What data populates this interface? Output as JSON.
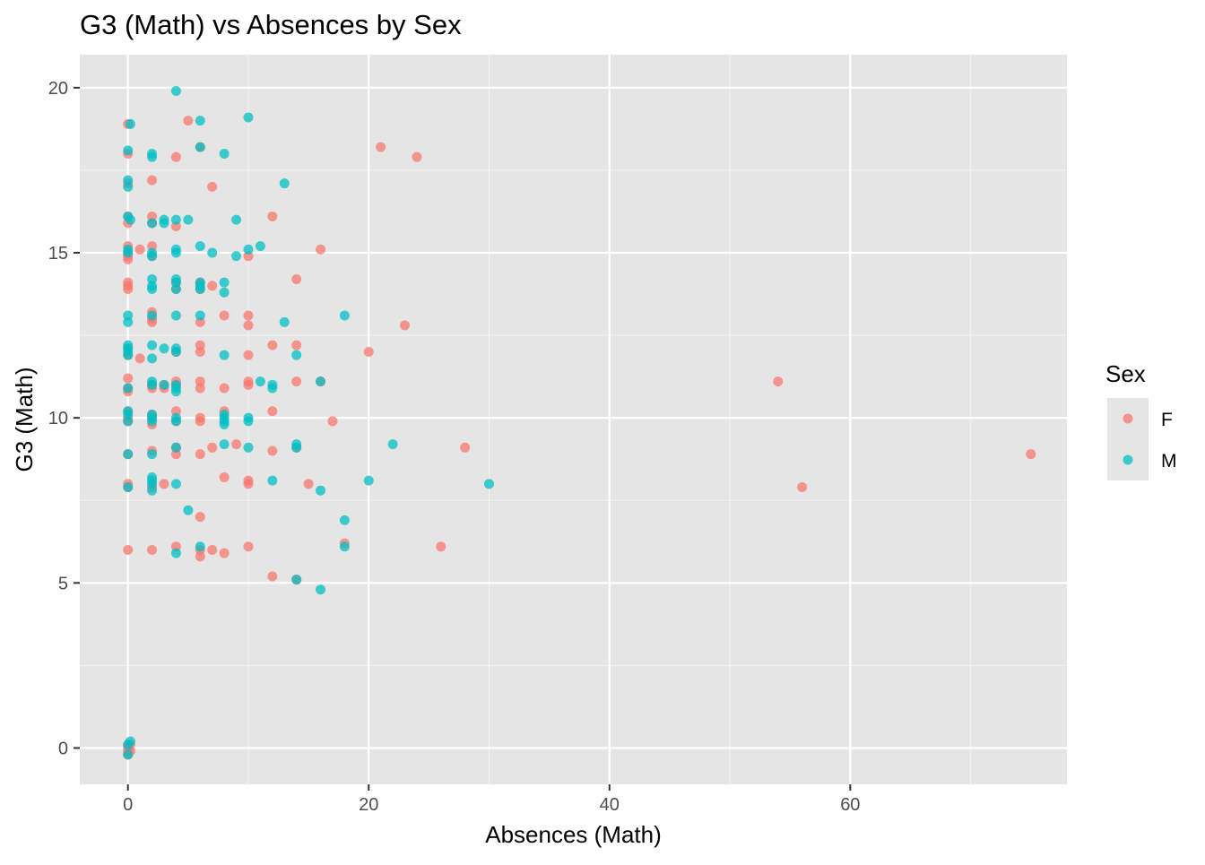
{
  "chart_data": {
    "type": "scatter",
    "title": "G3 (Math) vs Absences by Sex",
    "xlabel": "Absences (Math)",
    "ylabel": "G3 (Math)",
    "xlim": [
      -4,
      78
    ],
    "ylim": [
      -1.1,
      21
    ],
    "x_ticks": [
      0,
      20,
      40,
      60
    ],
    "y_ticks": [
      0,
      5,
      10,
      15,
      20
    ],
    "grid": true,
    "legend": {
      "title": "Sex",
      "position": "right"
    },
    "series": [
      {
        "name": "F",
        "color": "#F8766D",
        "points": [
          [
            0,
            18.9
          ],
          [
            0,
            18.0
          ],
          [
            0,
            17.1
          ],
          [
            0,
            16.1
          ],
          [
            0,
            15.9
          ],
          [
            0,
            15.2
          ],
          [
            0,
            15.0
          ],
          [
            0,
            14.9
          ],
          [
            0,
            14.8
          ],
          [
            0,
            14.1
          ],
          [
            0,
            14.0
          ],
          [
            0,
            13.9
          ],
          [
            0,
            12.1
          ],
          [
            0,
            11.9
          ],
          [
            0,
            11.2
          ],
          [
            0,
            10.9
          ],
          [
            0,
            10.8
          ],
          [
            0,
            10.2
          ],
          [
            0,
            10.0
          ],
          [
            0,
            9.9
          ],
          [
            0,
            8.9
          ],
          [
            0,
            8.0
          ],
          [
            0,
            7.9
          ],
          [
            0,
            6.0
          ],
          [
            0,
            0.1
          ],
          [
            0,
            0.0
          ],
          [
            0,
            -0.1
          ],
          [
            0,
            -0.2
          ],
          [
            0.2,
            0.1
          ],
          [
            0.2,
            -0.1
          ],
          [
            1,
            11.8
          ],
          [
            1,
            15.1
          ],
          [
            2,
            17.2
          ],
          [
            2,
            16.1
          ],
          [
            2,
            15.9
          ],
          [
            2,
            15.2
          ],
          [
            2,
            14.9
          ],
          [
            2,
            13.2
          ],
          [
            2,
            13.0
          ],
          [
            2,
            12.9
          ],
          [
            2,
            11.0
          ],
          [
            2,
            10.9
          ],
          [
            2,
            10.1
          ],
          [
            2,
            10.0
          ],
          [
            2,
            9.8
          ],
          [
            2,
            9.0
          ],
          [
            2,
            7.9
          ],
          [
            2,
            6.0
          ],
          [
            3,
            11.0
          ],
          [
            3,
            10.9
          ],
          [
            3,
            8.0
          ],
          [
            4,
            17.9
          ],
          [
            4,
            15.8
          ],
          [
            4,
            14.1
          ],
          [
            4,
            13.9
          ],
          [
            4,
            12.0
          ],
          [
            4,
            11.1
          ],
          [
            4,
            11.0
          ],
          [
            4,
            10.2
          ],
          [
            4,
            9.9
          ],
          [
            4,
            9.1
          ],
          [
            4,
            8.9
          ],
          [
            4,
            6.1
          ],
          [
            5,
            19.0
          ],
          [
            6,
            18.2
          ],
          [
            6,
            14.1
          ],
          [
            6,
            13.9
          ],
          [
            6,
            12.9
          ],
          [
            6,
            12.2
          ],
          [
            6,
            12.0
          ],
          [
            6,
            11.1
          ],
          [
            6,
            10.9
          ],
          [
            6,
            10.0
          ],
          [
            6,
            9.9
          ],
          [
            6,
            8.9
          ],
          [
            6,
            7.0
          ],
          [
            6,
            6.0
          ],
          [
            6,
            5.8
          ],
          [
            7,
            17.0
          ],
          [
            7,
            14.0
          ],
          [
            7,
            9.1
          ],
          [
            7,
            6.0
          ],
          [
            8,
            13.1
          ],
          [
            8,
            10.9
          ],
          [
            8,
            10.2
          ],
          [
            8,
            8.2
          ],
          [
            8,
            5.9
          ],
          [
            9,
            9.2
          ],
          [
            10,
            13.1
          ],
          [
            10,
            11.1
          ],
          [
            10,
            11.0
          ],
          [
            10,
            8.1
          ],
          [
            10,
            8.0
          ],
          [
            10,
            6.1
          ],
          [
            10,
            14.9
          ],
          [
            10,
            12.8
          ],
          [
            10,
            11.9
          ],
          [
            12,
            16.1
          ],
          [
            12,
            12.2
          ],
          [
            12,
            10.2
          ],
          [
            12,
            9.0
          ],
          [
            12,
            5.2
          ],
          [
            14,
            14.2
          ],
          [
            14,
            12.2
          ],
          [
            14,
            11.1
          ],
          [
            14,
            9.1
          ],
          [
            14,
            5.1
          ],
          [
            15,
            8.0
          ],
          [
            16,
            15.1
          ],
          [
            16,
            11.1
          ],
          [
            17,
            9.9
          ],
          [
            18,
            6.2
          ],
          [
            20,
            12.0
          ],
          [
            21,
            18.2
          ],
          [
            23,
            12.8
          ],
          [
            24,
            17.9
          ],
          [
            26,
            6.1
          ],
          [
            28,
            9.1
          ],
          [
            54,
            11.1
          ],
          [
            56,
            7.9
          ],
          [
            75,
            8.9
          ]
        ]
      },
      {
        "name": "M",
        "color": "#00BFC4",
        "points": [
          [
            0,
            18.1
          ],
          [
            0,
            17.2
          ],
          [
            0,
            17.0
          ],
          [
            0,
            16.1
          ],
          [
            0,
            15.1
          ],
          [
            0,
            15.0
          ],
          [
            0,
            13.1
          ],
          [
            0,
            12.9
          ],
          [
            0,
            12.2
          ],
          [
            0,
            12.1
          ],
          [
            0,
            12.0
          ],
          [
            0,
            11.9
          ],
          [
            0,
            10.9
          ],
          [
            0,
            10.2
          ],
          [
            0,
            10.1
          ],
          [
            0,
            9.9
          ],
          [
            0,
            8.9
          ],
          [
            0,
            7.9
          ],
          [
            0,
            0.1
          ],
          [
            0,
            -0.2
          ],
          [
            0.2,
            18.9
          ],
          [
            0.2,
            16.0
          ],
          [
            0.2,
            0.2
          ],
          [
            2,
            18.0
          ],
          [
            2,
            17.9
          ],
          [
            2,
            15.9
          ],
          [
            2,
            15.0
          ],
          [
            2,
            14.9
          ],
          [
            2,
            14.2
          ],
          [
            2,
            14.0
          ],
          [
            2,
            13.9
          ],
          [
            2,
            13.1
          ],
          [
            2,
            12.2
          ],
          [
            2,
            11.8
          ],
          [
            2,
            11.1
          ],
          [
            2,
            11.0
          ],
          [
            2,
            10.1
          ],
          [
            2,
            10.0
          ],
          [
            2,
            9.9
          ],
          [
            2,
            8.9
          ],
          [
            2,
            8.2
          ],
          [
            2,
            8.1
          ],
          [
            2,
            8.0
          ],
          [
            2,
            7.8
          ],
          [
            3,
            16.0
          ],
          [
            3,
            15.9
          ],
          [
            3,
            12.1
          ],
          [
            3,
            11.0
          ],
          [
            4,
            19.9
          ],
          [
            4,
            16.0
          ],
          [
            4,
            15.1
          ],
          [
            4,
            15.0
          ],
          [
            4,
            14.2
          ],
          [
            4,
            14.1
          ],
          [
            4,
            13.9
          ],
          [
            4,
            13.1
          ],
          [
            4,
            12.1
          ],
          [
            4,
            12.0
          ],
          [
            4,
            11.0
          ],
          [
            4,
            10.9
          ],
          [
            4,
            10.8
          ],
          [
            4,
            10.0
          ],
          [
            4,
            9.9
          ],
          [
            4,
            9.1
          ],
          [
            4,
            8.0
          ],
          [
            4,
            5.9
          ],
          [
            5,
            16.0
          ],
          [
            5,
            7.2
          ],
          [
            6,
            19.0
          ],
          [
            6,
            18.2
          ],
          [
            6,
            15.2
          ],
          [
            6,
            14.1
          ],
          [
            6,
            14.0
          ],
          [
            6,
            13.9
          ],
          [
            6,
            13.1
          ],
          [
            6,
            6.1
          ],
          [
            7,
            15.0
          ],
          [
            8,
            18.0
          ],
          [
            8,
            14.1
          ],
          [
            8,
            13.8
          ],
          [
            8,
            11.9
          ],
          [
            8,
            10.1
          ],
          [
            8,
            10.0
          ],
          [
            8,
            9.9
          ],
          [
            8,
            9.8
          ],
          [
            8,
            9.2
          ],
          [
            9,
            16.0
          ],
          [
            9,
            14.9
          ],
          [
            10,
            19.1
          ],
          [
            10,
            15.1
          ],
          [
            10,
            10.0
          ],
          [
            10,
            9.9
          ],
          [
            10,
            9.1
          ],
          [
            11,
            15.2
          ],
          [
            11,
            11.1
          ],
          [
            12,
            11.0
          ],
          [
            12,
            10.9
          ],
          [
            12,
            8.1
          ],
          [
            13,
            17.1
          ],
          [
            13,
            12.9
          ],
          [
            14,
            11.9
          ],
          [
            14,
            9.2
          ],
          [
            14,
            9.1
          ],
          [
            14,
            5.1
          ],
          [
            16,
            11.1
          ],
          [
            16,
            7.8
          ],
          [
            16,
            4.8
          ],
          [
            18,
            13.1
          ],
          [
            18,
            6.9
          ],
          [
            18,
            6.1
          ],
          [
            20,
            8.1
          ],
          [
            22,
            9.2
          ],
          [
            30,
            8.0
          ]
        ]
      }
    ]
  }
}
